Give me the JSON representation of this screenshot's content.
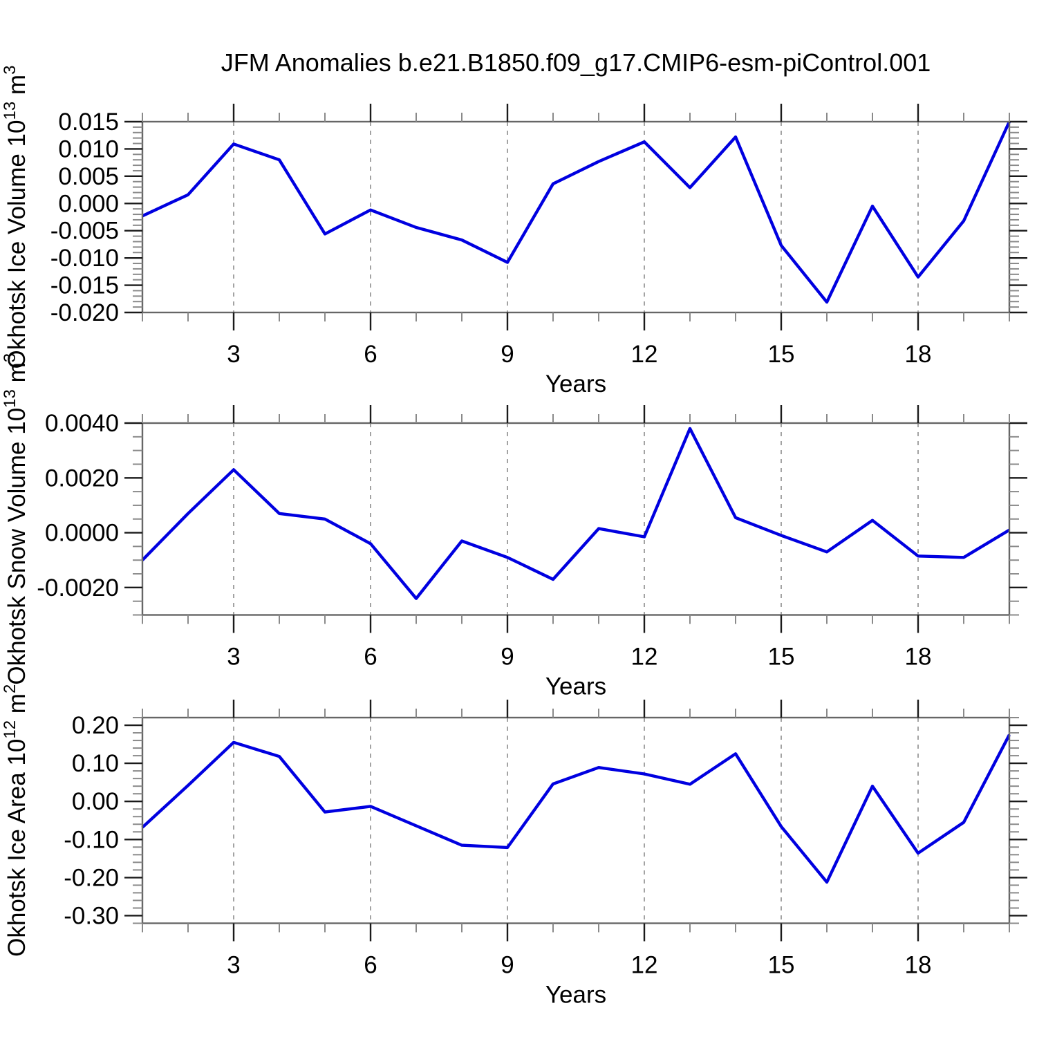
{
  "title": "JFM Anomalies b.e21.B1850.f09_g17.CMIP6-esm-piControl.001",
  "colors": {
    "series": "#0000e0",
    "grid": "#999999",
    "frame": "#666666",
    "major_tick": "#1a1a1a",
    "minor_tick": "#8a8a8a",
    "text": "#000000"
  },
  "chart_data": [
    {
      "type": "line",
      "name": "okhotsk-ice-volume",
      "ylabel_parts": [
        {
          "t": "Okhotsk Ice Volume 10"
        },
        {
          "t": "13",
          "sup": true
        },
        {
          "t": " m"
        },
        {
          "t": "3",
          "sup": true
        }
      ],
      "xlabel": "Years",
      "x": [
        1,
        2,
        3,
        4,
        5,
        6,
        7,
        8,
        9,
        10,
        11,
        12,
        13,
        14,
        15,
        16,
        17,
        18,
        19,
        20
      ],
      "values": [
        -0.0023,
        0.0016,
        0.0109,
        0.008,
        -0.0056,
        -0.0012,
        -0.0044,
        -0.0067,
        -0.0108,
        0.0036,
        0.0077,
        0.0113,
        0.0029,
        0.0122,
        -0.0077,
        -0.0181,
        -0.0005,
        -0.0135,
        -0.0032,
        0.015
      ],
      "xlim": [
        1,
        20
      ],
      "ylim": [
        -0.02,
        0.015
      ],
      "yticks": {
        "values": [
          0.015,
          0.01,
          0.005,
          0.0,
          -0.005,
          -0.01,
          -0.015,
          -0.02
        ],
        "labels": [
          "0.015",
          "0.010",
          "0.005",
          "0.000",
          "-0.005",
          "-0.010",
          "-0.015",
          "-0.020"
        ]
      },
      "yminor_step": 0.001,
      "xticks": {
        "values": [
          3,
          6,
          9,
          12,
          15,
          18
        ],
        "labels": [
          "3",
          "6",
          "9",
          "12",
          "15",
          "18"
        ]
      },
      "xminor_step": 1,
      "grid": "vertical-dashed",
      "legend": "none"
    },
    {
      "type": "line",
      "name": "okhotsk-snow-volume",
      "ylabel_parts": [
        {
          "t": "Okhotsk Snow Volume 10"
        },
        {
          "t": "13",
          "sup": true
        },
        {
          "t": " m"
        },
        {
          "t": "3",
          "sup": true
        }
      ],
      "xlabel": "Years",
      "x": [
        1,
        2,
        3,
        4,
        5,
        6,
        7,
        8,
        9,
        10,
        11,
        12,
        13,
        14,
        15,
        16,
        17,
        18,
        19,
        20
      ],
      "values": [
        -0.001,
        0.0007,
        0.0023,
        0.0007,
        0.0005,
        -0.0004,
        -0.0024,
        -0.0003,
        -0.0009,
        -0.0017,
        0.00015,
        -0.00015,
        0.0038,
        0.00055,
        -0.0001,
        -0.0007,
        0.00045,
        -0.00085,
        -0.0009,
        0.0001
      ],
      "xlim": [
        1,
        20
      ],
      "ylim": [
        -0.003,
        0.004
      ],
      "yticks": {
        "values": [
          0.004,
          0.002,
          0.0,
          -0.002
        ],
        "labels": [
          "0.0040",
          "0.0020",
          "0.0000",
          "-0.0020"
        ]
      },
      "yminor_step": 0.0005,
      "xticks": {
        "values": [
          3,
          6,
          9,
          12,
          15,
          18
        ],
        "labels": [
          "3",
          "6",
          "9",
          "12",
          "15",
          "18"
        ]
      },
      "xminor_step": 1,
      "grid": "vertical-dashed",
      "legend": "none"
    },
    {
      "type": "line",
      "name": "okhotsk-ice-area",
      "ylabel_parts": [
        {
          "t": "Okhotsk Ice Area 10"
        },
        {
          "t": "12",
          "sup": true
        },
        {
          "t": " m"
        },
        {
          "t": "2",
          "sup": true
        }
      ],
      "xlabel": "Years",
      "x": [
        1,
        2,
        3,
        4,
        5,
        6,
        7,
        8,
        9,
        10,
        11,
        12,
        13,
        14,
        15,
        16,
        17,
        18,
        19,
        20
      ],
      "values": [
        -0.068,
        0.042,
        0.155,
        0.118,
        -0.028,
        -0.013,
        -0.064,
        -0.115,
        -0.121,
        0.046,
        0.089,
        0.072,
        0.045,
        0.125,
        -0.066,
        -0.212,
        0.04,
        -0.136,
        -0.055,
        0.175
      ],
      "xlim": [
        1,
        20
      ],
      "ylim": [
        -0.32,
        0.22
      ],
      "yticks": {
        "values": [
          0.2,
          0.1,
          0.0,
          -0.1,
          -0.2,
          -0.3
        ],
        "labels": [
          "0.20",
          "0.10",
          "0.00",
          "-0.10",
          "-0.20",
          "-0.30"
        ]
      },
      "yminor_step": 0.02,
      "xticks": {
        "values": [
          3,
          6,
          9,
          12,
          15,
          18
        ],
        "labels": [
          "3",
          "6",
          "9",
          "12",
          "15",
          "18"
        ]
      },
      "xminor_step": 1,
      "grid": "vertical-dashed",
      "legend": "none"
    }
  ]
}
